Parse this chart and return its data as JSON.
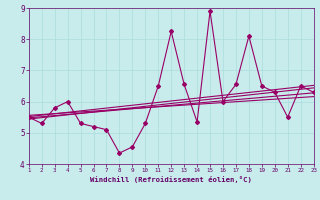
{
  "xlabel": "Windchill (Refroidissement éolien,°C)",
  "ylabel": "",
  "xlim": [
    1,
    23
  ],
  "ylim": [
    4,
    9
  ],
  "xticks": [
    1,
    2,
    3,
    4,
    5,
    6,
    7,
    8,
    9,
    10,
    11,
    12,
    13,
    14,
    15,
    16,
    17,
    18,
    19,
    20,
    21,
    22,
    23
  ],
  "yticks": [
    4,
    5,
    6,
    7,
    8,
    9
  ],
  "bg_color": "#c8ecec",
  "line_color": "#990066",
  "grid_color": "#aadddd",
  "main_series_x": [
    1,
    2,
    3,
    4,
    5,
    6,
    7,
    8,
    9,
    10,
    11,
    12,
    13,
    14,
    15,
    16,
    17,
    18,
    19,
    20,
    21,
    22,
    23
  ],
  "main_series_y": [
    5.5,
    5.3,
    5.8,
    6.0,
    5.3,
    5.2,
    5.1,
    4.35,
    4.55,
    5.3,
    6.5,
    8.25,
    6.55,
    5.35,
    8.9,
    6.0,
    6.55,
    8.1,
    6.5,
    6.3,
    5.5,
    6.5,
    6.3
  ],
  "trend1_x": [
    1,
    23
  ],
  "trend1_y": [
    5.48,
    6.28
  ],
  "trend2_x": [
    1,
    23
  ],
  "trend2_y": [
    5.52,
    6.52
  ],
  "trend3_x": [
    1,
    23
  ],
  "trend3_y": [
    5.56,
    6.16
  ],
  "trend4_x": [
    1,
    23
  ],
  "trend4_y": [
    5.44,
    6.44
  ]
}
